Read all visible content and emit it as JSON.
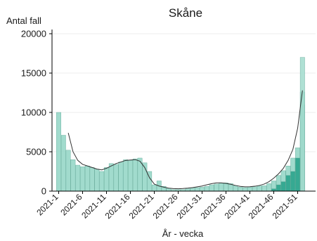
{
  "chart_data": {
    "type": "bar",
    "title": "Skåne",
    "ylabel": "Antal fall",
    "xlabel": "År - vecka",
    "ylim": [
      0,
      20000
    ],
    "yticks": [
      0,
      5000,
      10000,
      15000,
      20000
    ],
    "xtick_labels": [
      "2021-1",
      "2021-6",
      "2021-11",
      "2021-16",
      "2021-21",
      "2021-26",
      "2021-31",
      "2021-36",
      "2021-41",
      "2021-46",
      "2021-51"
    ],
    "grid": "horizontal",
    "categories": [
      "2021-1",
      "2021-2",
      "2021-3",
      "2021-4",
      "2021-5",
      "2021-6",
      "2021-7",
      "2021-8",
      "2021-9",
      "2021-10",
      "2021-11",
      "2021-12",
      "2021-13",
      "2021-14",
      "2021-15",
      "2021-16",
      "2021-17",
      "2021-18",
      "2021-19",
      "2021-20",
      "2021-21",
      "2021-22",
      "2021-23",
      "2021-24",
      "2021-25",
      "2021-26",
      "2021-27",
      "2021-28",
      "2021-29",
      "2021-30",
      "2021-31",
      "2021-32",
      "2021-33",
      "2021-34",
      "2021-35",
      "2021-36",
      "2021-37",
      "2021-38",
      "2021-39",
      "2021-40",
      "2021-41",
      "2021-42",
      "2021-43",
      "2021-44",
      "2021-45",
      "2021-46",
      "2021-47",
      "2021-48",
      "2021-49",
      "2021-50",
      "2021-51",
      "2021-52"
    ],
    "series": [
      {
        "type": "bar",
        "color": "#99d8c9",
        "values": [
          10000,
          7100,
          5200,
          4000,
          3300,
          3100,
          3200,
          3000,
          2800,
          2500,
          3000,
          3500,
          3400,
          3700,
          4000,
          3900,
          4100,
          4200,
          3600,
          2500,
          800,
          1300,
          600,
          350,
          200,
          200,
          200,
          300,
          400,
          450,
          500,
          600,
          800,
          900,
          1000,
          1050,
          950,
          700,
          500,
          450,
          500,
          550,
          650,
          700,
          950,
          1300,
          2000,
          2600,
          3200,
          4200,
          5500,
          11000
        ]
      },
      {
        "type": "bar",
        "color": "#2ca58d",
        "values": [
          0,
          0,
          0,
          0,
          0,
          0,
          0,
          0,
          0,
          0,
          0,
          0,
          0,
          0,
          0,
          0,
          0,
          0,
          0,
          0,
          0,
          0,
          0,
          0,
          0,
          0,
          0,
          0,
          0,
          0,
          0,
          0,
          0,
          0,
          0,
          0,
          0,
          0,
          0,
          0,
          0,
          0,
          0,
          0,
          0,
          300,
          800,
          1200,
          2000,
          2500,
          4200,
          12600
        ]
      },
      {
        "type": "bar",
        "color": "#a8ddd0",
        "values": [
          0,
          0,
          0,
          0,
          0,
          0,
          0,
          0,
          0,
          0,
          0,
          0,
          0,
          0,
          0,
          0,
          0,
          0,
          0,
          0,
          0,
          0,
          0,
          0,
          0,
          0,
          0,
          0,
          0,
          0,
          0,
          0,
          0,
          0,
          0,
          0,
          0,
          0,
          0,
          0,
          0,
          0,
          0,
          0,
          0,
          0,
          0,
          0,
          0,
          0,
          0,
          17000
        ]
      },
      {
        "type": "line",
        "color": "#333333",
        "values": [
          null,
          null,
          7400,
          5000,
          3900,
          3400,
          3200,
          3000,
          2800,
          2700,
          2900,
          3200,
          3500,
          3700,
          3900,
          3950,
          4000,
          3800,
          3000,
          1700,
          900,
          650,
          500,
          380,
          320,
          300,
          330,
          380,
          450,
          550,
          650,
          800,
          950,
          1050,
          1050,
          980,
          870,
          720,
          600,
          550,
          560,
          620,
          720,
          900,
          1200,
          1650,
          2200,
          2900,
          3900,
          5300,
          8000,
          12800
        ]
      }
    ]
  }
}
